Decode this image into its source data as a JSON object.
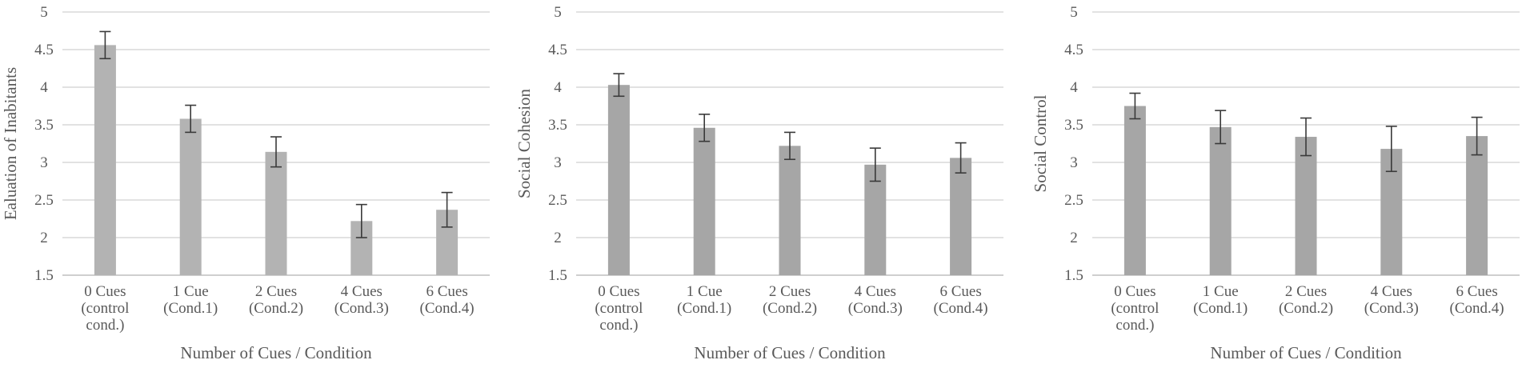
{
  "chart_data": [
    {
      "type": "bar",
      "title": "",
      "xlabel": "Number of Cues / Condition",
      "ylabel": "Ealuation of Inabitants",
      "ylim": [
        1.5,
        5
      ],
      "yticks": [
        "1.5",
        "2",
        "2.5",
        "3",
        "3.5",
        "4",
        "4.5",
        "5"
      ],
      "categories": [
        [
          "0 Cues",
          "(control",
          "cond.)"
        ],
        [
          "1 Cue",
          "(Cond.1)"
        ],
        [
          "2 Cues",
          "(Cond.2)"
        ],
        [
          "4 Cues",
          "(Cond.3)"
        ],
        [
          "6 Cues",
          "(Cond.4)"
        ]
      ],
      "values": [
        4.56,
        3.58,
        3.14,
        2.22,
        2.37
      ],
      "errors": [
        0.18,
        0.18,
        0.2,
        0.22,
        0.23
      ],
      "bar_color": "#b3b3b3",
      "grid": true
    },
    {
      "type": "bar",
      "title": "",
      "xlabel": "Number of Cues / Condition",
      "ylabel": "Social Cohesion",
      "ylim": [
        1.5,
        5
      ],
      "yticks": [
        "1.5",
        "2",
        "2.5",
        "3",
        "3.5",
        "4",
        "4.5",
        "5"
      ],
      "categories": [
        [
          "0 Cues",
          "(control",
          "cond.)"
        ],
        [
          "1 Cue",
          "(Cond.1)"
        ],
        [
          "2 Cues",
          "(Cond.2)"
        ],
        [
          "4 Cues",
          "(Cond.3)"
        ],
        [
          "6 Cues",
          "(Cond.4)"
        ]
      ],
      "values": [
        4.03,
        3.46,
        3.22,
        2.97,
        3.06
      ],
      "errors": [
        0.15,
        0.18,
        0.18,
        0.22,
        0.2
      ],
      "bar_color": "#a6a6a6",
      "grid": true
    },
    {
      "type": "bar",
      "title": "",
      "xlabel": "Number of Cues / Condition",
      "ylabel": "Social Control",
      "ylim": [
        1.5,
        5
      ],
      "yticks": [
        "1.5",
        "2",
        "2.5",
        "3",
        "3.5",
        "4",
        "4.5",
        "5"
      ],
      "categories": [
        [
          "0 Cues",
          "(control",
          "cond.)"
        ],
        [
          "1 Cue",
          "(Cond.1)"
        ],
        [
          "2 Cues",
          "(Cond.2)"
        ],
        [
          "4 Cues",
          "(Cond.3)"
        ],
        [
          "6 Cues",
          "(Cond.4)"
        ]
      ],
      "values": [
        3.75,
        3.47,
        3.34,
        3.18,
        3.35
      ],
      "errors": [
        0.17,
        0.22,
        0.25,
        0.3,
        0.25
      ],
      "bar_color": "#a6a6a6",
      "grid": true
    }
  ]
}
